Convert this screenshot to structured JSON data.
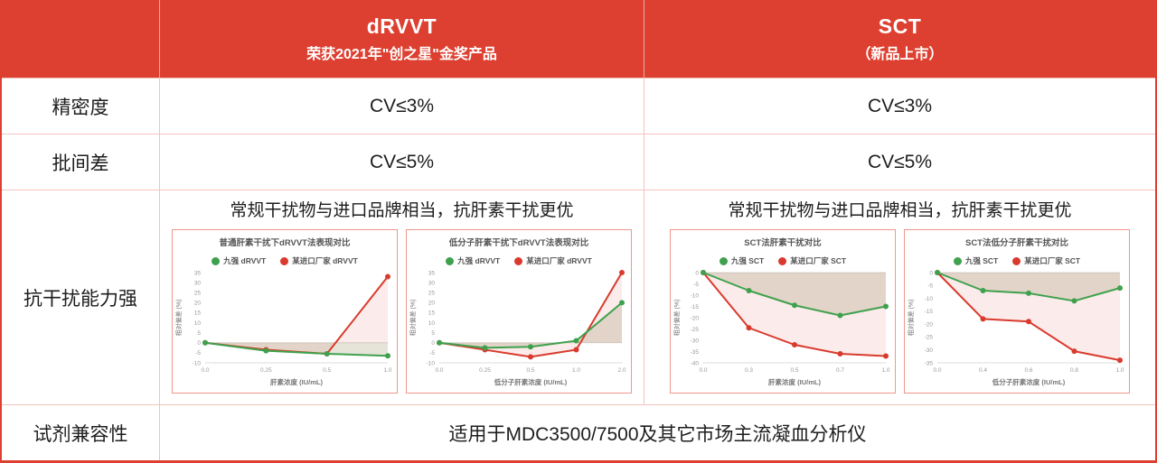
{
  "colors": {
    "header_bg": "#dd4031",
    "outer_border": "#dd4031",
    "grid_border": "#f3c3bc",
    "chart_border": "#f0968c",
    "green": "#3fa14d",
    "red": "#d93a2d",
    "green_fill": "rgba(130,122,66,0.20)",
    "red_fill": "rgba(217,58,45,0.10)",
    "axis_line": "#dcdcdc",
    "tick_text": "#999999",
    "chart_text": "#555555"
  },
  "header": {
    "product1": {
      "title": "dRVVT",
      "subtitle": "荣获2021年\"创之星\"金奖产品"
    },
    "product2": {
      "title": "SCT",
      "subtitle": "（新品上市）"
    }
  },
  "rows": {
    "precision": {
      "label": "精密度",
      "drvvt": "CV≤3%",
      "sct": "CV≤3%"
    },
    "batch": {
      "label": "批间差",
      "drvvt": "CV≤5%",
      "sct": "CV≤5%"
    },
    "interference": {
      "label": "抗干扰能力强",
      "drvvt_text": "常规干扰物与进口品牌相当，抗肝素干扰更优",
      "sct_text": "常规干扰物与进口品牌相当，抗肝素干扰更优"
    },
    "compatibility": {
      "label": "试剂兼容性",
      "value": "适用于MDC3500/7500及其它市场主流凝血分析仪"
    }
  },
  "chart_data": [
    {
      "type": "line",
      "group": "drvvt",
      "title": "普通肝素干扰下dRVVT法表现对比",
      "xlabel": "肝素浓度 (IU/mL)",
      "ylabel": "相对偏差 (%)",
      "x_labels": [
        "0.0",
        "0.25",
        "0.5",
        "1.0"
      ],
      "ylim": [
        -10,
        35
      ],
      "ytick_step": 5,
      "series": [
        {
          "name": "九强 dRVVT",
          "color_key": "green",
          "values": [
            0,
            -4,
            -5.5,
            -6.5
          ]
        },
        {
          "name": "某进口厂家 dRVVT",
          "color_key": "red",
          "values": [
            0,
            -3.5,
            -5.5,
            33
          ]
        }
      ]
    },
    {
      "type": "line",
      "group": "drvvt",
      "title": "低分子肝素干扰下dRVVT法表现对比",
      "xlabel": "低分子肝素浓度 (IU/mL)",
      "ylabel": "相对偏差 (%)",
      "x_labels": [
        "0.0",
        "0.25",
        "0.5",
        "1.0",
        "2.0"
      ],
      "ylim": [
        -10,
        35
      ],
      "ytick_step": 5,
      "series": [
        {
          "name": "九强 dRVVT",
          "color_key": "green",
          "values": [
            0,
            -2.5,
            -2,
            1,
            20
          ]
        },
        {
          "name": "某进口厂家 dRVVT",
          "color_key": "red",
          "values": [
            0,
            -3.5,
            -7,
            -3.5,
            35
          ]
        }
      ]
    },
    {
      "type": "line",
      "group": "sct",
      "title": "SCT法肝素干扰对比",
      "xlabel": "肝素浓度 (IU/mL)",
      "ylabel": "相对偏差 (%)",
      "x_labels": [
        "0.0",
        "0.3",
        "0.5",
        "0.7",
        "1.0"
      ],
      "ylim": [
        -40,
        0
      ],
      "ytick_step": 5,
      "series": [
        {
          "name": "九强 SCT",
          "color_key": "green",
          "values": [
            0,
            -8,
            -14.5,
            -19,
            -15
          ]
        },
        {
          "name": "某进口厂家 SCT",
          "color_key": "red",
          "values": [
            0,
            -24.5,
            -32,
            -36,
            -37
          ]
        }
      ]
    },
    {
      "type": "line",
      "group": "sct",
      "title": "SCT法低分子肝素干扰对比",
      "xlabel": "低分子肝素浓度 (IU/mL)",
      "ylabel": "相对偏差 (%)",
      "x_labels": [
        "0.0",
        "0.4",
        "0.6",
        "0.8",
        "1.0"
      ],
      "ylim": [
        -35,
        0
      ],
      "ytick_step": 5,
      "series": [
        {
          "name": "九强 SCT",
          "color_key": "green",
          "values": [
            0,
            -7,
            -8,
            -11,
            -6
          ]
        },
        {
          "name": "某进口厂家 SCT",
          "color_key": "red",
          "values": [
            0,
            -18,
            -19,
            -30.5,
            -34
          ]
        }
      ]
    }
  ]
}
